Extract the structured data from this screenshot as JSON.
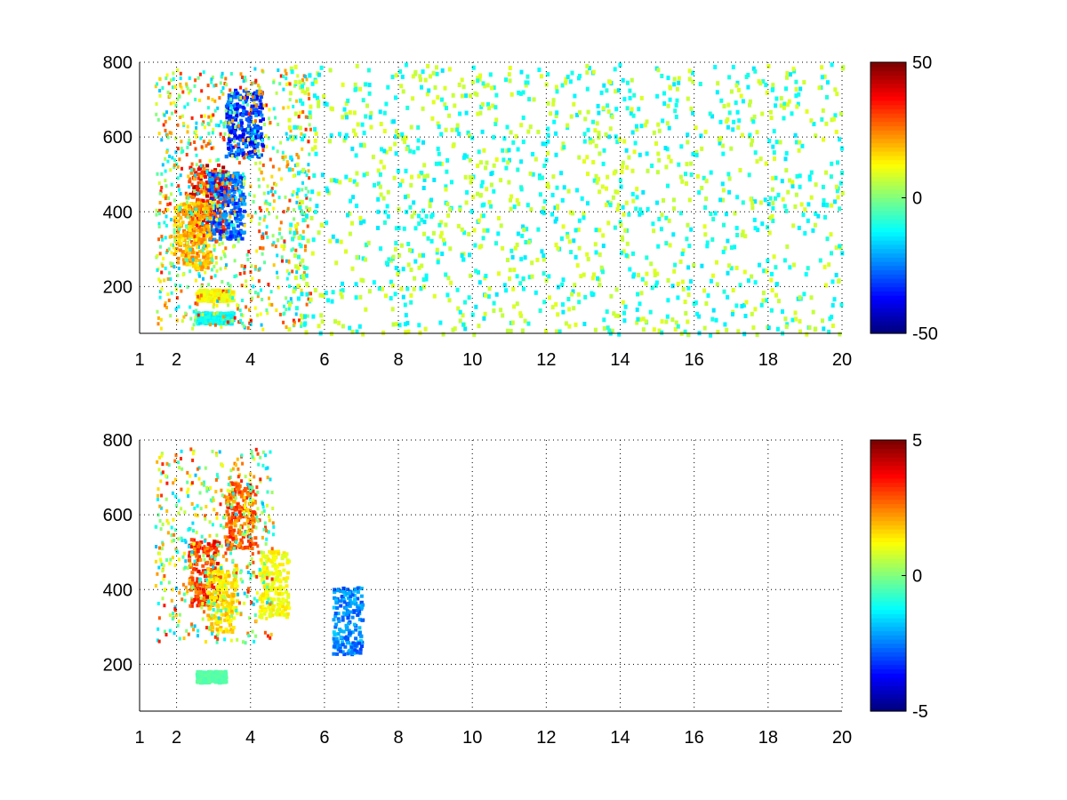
{
  "chart_data": [
    {
      "type": "heatmap",
      "title": "",
      "xlabel": "",
      "ylabel": "",
      "xlim": [
        1,
        20
      ],
      "ylim": [
        75,
        800
      ],
      "x_ticks": [
        "1",
        "2",
        "4",
        "6",
        "8",
        "10",
        "12",
        "14",
        "16",
        "18",
        "20"
      ],
      "x_tick_values": [
        1,
        2,
        4,
        6,
        8,
        10,
        12,
        14,
        16,
        18,
        20
      ],
      "y_ticks": [
        "200",
        "400",
        "600",
        "800"
      ],
      "y_tick_values": [
        200,
        400,
        600,
        800
      ],
      "grid": "dotted",
      "colormap": "jet",
      "clim": [
        -50,
        50
      ],
      "colorbar_ticks": [
        "-50",
        "0",
        "50"
      ],
      "colorbar_tick_values": [
        -50,
        0,
        50
      ],
      "features": [
        {
          "x": 2.8,
          "y": 440,
          "value": 45
        },
        {
          "x": 3.8,
          "y": 640,
          "value": -40
        },
        {
          "x": 3.3,
          "y": 420,
          "value": -35
        },
        {
          "x": 2.4,
          "y": 340,
          "value": 25
        },
        {
          "x": 3.0,
          "y": 180,
          "value": 15
        },
        {
          "x": 3.0,
          "y": 120,
          "value": -15
        }
      ],
      "sparse_region": {
        "x_range": [
          5,
          20
        ],
        "values": [
          -15,
          10
        ]
      }
    },
    {
      "type": "heatmap",
      "title": "",
      "xlabel": "",
      "ylabel": "",
      "xlim": [
        1,
        20
      ],
      "ylim": [
        75,
        800
      ],
      "x_ticks": [
        "1",
        "2",
        "4",
        "6",
        "8",
        "10",
        "12",
        "14",
        "16",
        "18",
        "20"
      ],
      "x_tick_values": [
        1,
        2,
        4,
        6,
        8,
        10,
        12,
        14,
        16,
        18,
        20
      ],
      "y_ticks": [
        "200",
        "400",
        "600",
        "800"
      ],
      "y_tick_values": [
        200,
        400,
        600,
        800
      ],
      "grid": "dotted",
      "colormap": "jet",
      "clim": [
        -5,
        5
      ],
      "colorbar_ticks": [
        "-5",
        "0",
        "5"
      ],
      "colorbar_tick_values": [
        -5,
        0,
        5
      ],
      "features": [
        {
          "x": 2.7,
          "y": 450,
          "value": 4
        },
        {
          "x": 3.7,
          "y": 600,
          "value": 3.5
        },
        {
          "x": 3.2,
          "y": 380,
          "value": 2
        },
        {
          "x": 2.9,
          "y": 170,
          "value": -0.5
        },
        {
          "x": 4.6,
          "y": 420,
          "value": 1.5
        },
        {
          "x": 6.6,
          "y": 320,
          "value": -3
        }
      ]
    }
  ]
}
